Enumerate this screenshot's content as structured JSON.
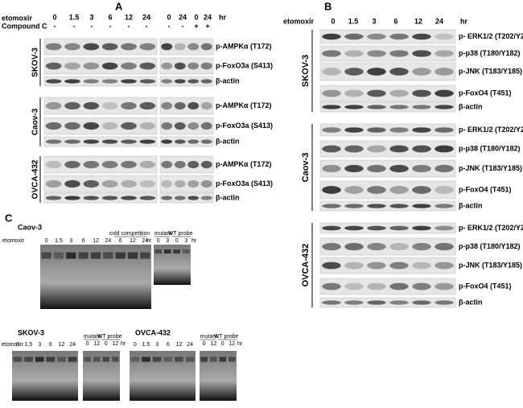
{
  "panel_a": {
    "label": "A",
    "treatment": "etomoxir",
    "times": [
      "0",
      "1.5",
      "3",
      "6",
      "12",
      "24",
      "0",
      "24",
      "0",
      "24"
    ],
    "unit": "hr",
    "inhibitor": "Compound C",
    "inhibitor_signs": [
      "-",
      "-",
      "-",
      "-",
      "-",
      "-",
      "-",
      "-",
      "+",
      "+"
    ],
    "blocks": [
      {
        "cell_line": "SKOV-3",
        "rows": [
          "p-AMPKα (T172)",
          "p-FoxO3a (S413)",
          "β-actin"
        ]
      },
      {
        "cell_line": "Caov-3",
        "rows": [
          "p-AMPKα (T172)",
          "p-FoxO3a (S413)",
          "β-actin"
        ]
      },
      {
        "cell_line": "OVCA-432",
        "rows": [
          "p-AMPKα (T172)",
          "p-FoxO3a (S413)",
          "β-actin"
        ]
      }
    ]
  },
  "panel_b": {
    "label": "B",
    "treatment": "etomoxir",
    "times": [
      "0",
      "1.5",
      "3",
      "6",
      "12",
      "24"
    ],
    "unit": "hr",
    "blocks": [
      {
        "cell_line": "SKOV-3",
        "rows": [
          "p- ERK1/2 (T202/Y204)",
          "p-p38 (T180/Y182)",
          "p-JNK (T183/Y185)",
          "p-FoxO4 (T451)",
          "β-actin"
        ]
      },
      {
        "cell_line": "Caov-3",
        "rows": [
          "p- ERK1/2 (T202/Y204)",
          "p-p38 (T180/Y182)",
          "p-JNK (T183/Y185)",
          "p-FoxO4 (T451)",
          "β-actin"
        ]
      },
      {
        "cell_line": "OVCA-432",
        "rows": [
          "p- ERK1/2 (T202/Y204)",
          "p-p38 (T180/Y182)",
          "p-JNK (T183/Y185)",
          "p-FoxO4 (T451)",
          "β-actin"
        ]
      }
    ]
  },
  "panel_c": {
    "label": "C",
    "gels": [
      {
        "cell_line": "Caov-3",
        "treatment": "etomoxir",
        "times": [
          "0",
          "1.5",
          "3",
          "6",
          "12",
          "24"
        ],
        "competition": "cold competition",
        "competition_times": [
          "6",
          "12",
          "24"
        ],
        "unit": "hr",
        "control": {
          "labels": [
            "mutant",
            "WT probe"
          ],
          "times": [
            "0",
            "3",
            "0",
            "3"
          ],
          "unit": "hr"
        }
      },
      {
        "cell_line": "SKOV-3",
        "treatment": "etomoxir",
        "times": [
          "0",
          "1.5",
          "3",
          "6",
          "12",
          "24"
        ],
        "control": {
          "labels": [
            "mutant",
            "WT probe"
          ],
          "times": [
            "0",
            "12",
            "0",
            "12"
          ],
          "unit": "hr"
        }
      },
      {
        "cell_line": "OVCA-432",
        "times": [
          "0",
          "1.5",
          "3",
          "6",
          "12",
          "24"
        ],
        "control": {
          "labels": [
            "mutant",
            "WT probe"
          ],
          "times": [
            "0",
            "12",
            "0",
            "12"
          ],
          "unit": "hr"
        }
      }
    ]
  }
}
